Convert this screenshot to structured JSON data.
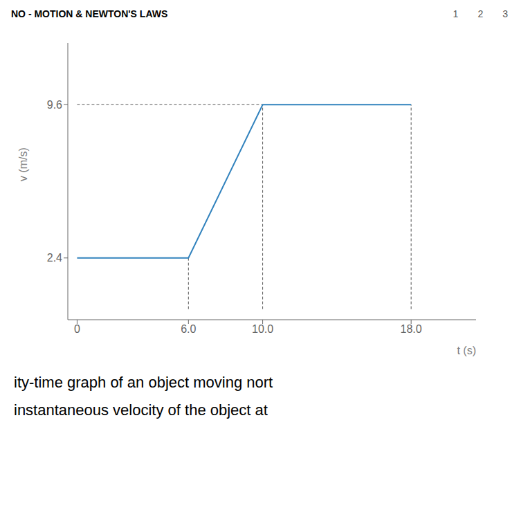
{
  "chart_data": {
    "type": "line",
    "title": "NO - MOTION & NEWTON'S LAWS",
    "x": [
      0,
      6.0,
      10.0,
      18.0
    ],
    "values": [
      2.4,
      2.4,
      9.6,
      9.6
    ],
    "xlim": [
      -0.5,
      21.5
    ],
    "ylim": [
      -0.5,
      12.5
    ],
    "xticks": [
      0,
      {
        "value": 6.0,
        "label": "6.0"
      },
      {
        "value": 10.0,
        "label": "10.0"
      },
      {
        "value": 18.0,
        "label": "18.0"
      }
    ],
    "yticks": [
      2.4,
      9.6
    ],
    "x_label": "t (s)",
    "y_label": "v (m/s)",
    "annotations": [
      "1",
      "2",
      "3",
      "ity-time graph of an object moving nort",
      "instantaneous velocity of the object at"
    ],
    "grid": false
  }
}
